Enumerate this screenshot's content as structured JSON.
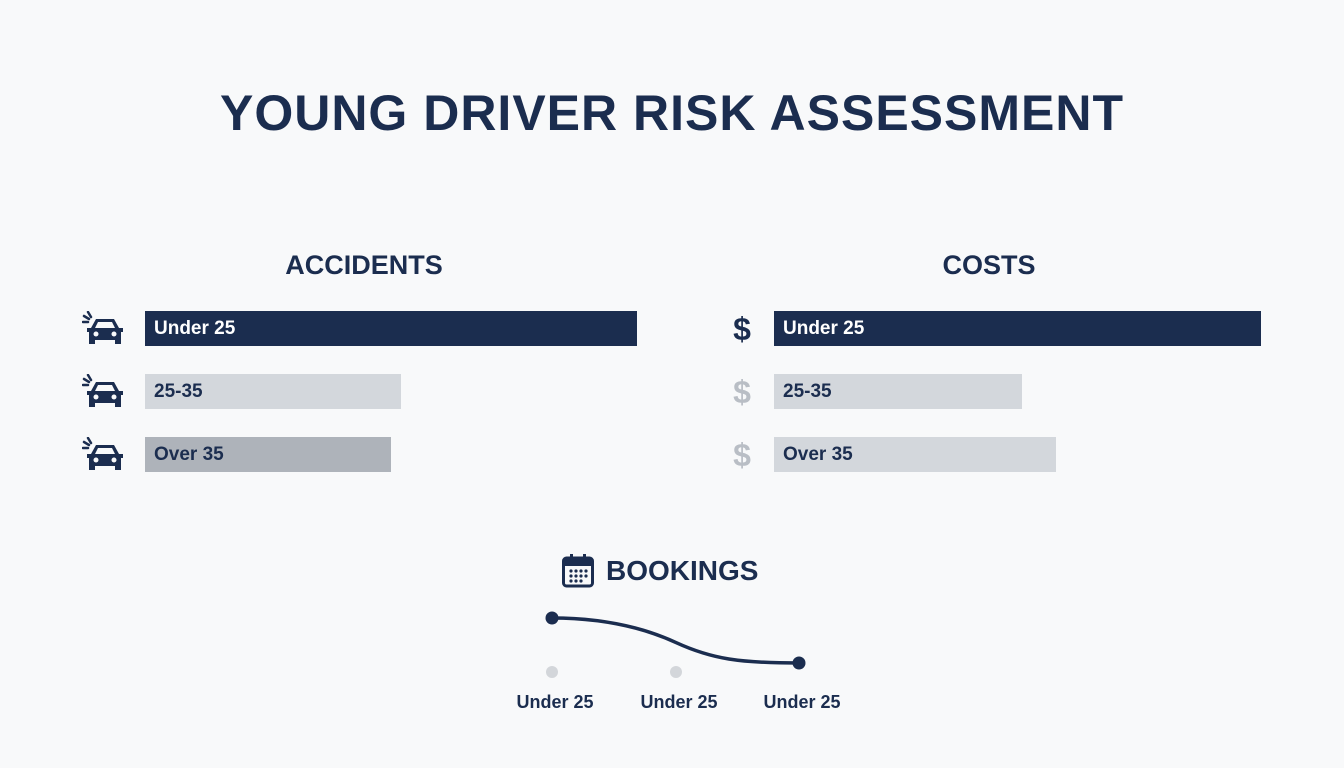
{
  "title": "YOUNG DRIVER RISK ASSESSMENT",
  "colors": {
    "primary": "#1b2d4f",
    "light": "#d3d7dc",
    "medium": "#aeb3ba",
    "muted_icon": "#b9bec5"
  },
  "chart_data": [
    {
      "type": "bar",
      "orientation": "horizontal",
      "title": "ACCIDENTS",
      "icon": "car-crash-icon",
      "categories": [
        "Under 25",
        "25-35",
        "Over 35"
      ],
      "values": [
        100,
        52,
        50
      ]
    },
    {
      "type": "bar",
      "orientation": "horizontal",
      "title": "COSTS",
      "icon": "dollar-icon",
      "categories": [
        "Under 25",
        "25-35",
        "Over 35"
      ],
      "values": [
        100,
        51,
        58
      ]
    },
    {
      "type": "line",
      "title": "BOOKINGS",
      "icon": "calendar-icon",
      "categories": [
        "Under 25",
        "Under 25",
        "Under 25"
      ],
      "values": [
        100,
        70,
        45
      ]
    }
  ]
}
